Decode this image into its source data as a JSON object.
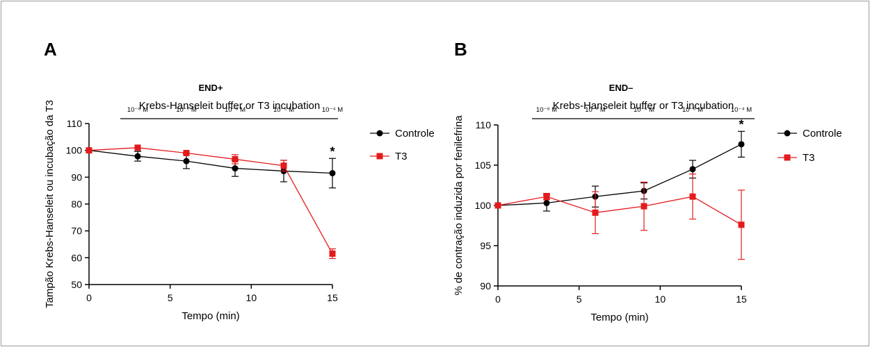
{
  "chart_data": [
    {
      "type": "line",
      "panel": "A",
      "condition": "END+",
      "buffer_label": "Krebs-Hanseleit buffer or T3 incubation",
      "concentrations": [
        "10⁻⁸ M",
        "10⁻⁷ M",
        "10⁻⁶ M",
        "10⁻⁵ M",
        "10⁻⁴ M"
      ],
      "xlabel": "Tempo (min)",
      "ylabel": "Tampão Krebs-Hanseleit ou incubação da T3",
      "xlim": [
        0,
        15
      ],
      "ylim": [
        50,
        110
      ],
      "xticks": [
        0,
        5,
        10,
        15
      ],
      "yticks": [
        50,
        60,
        70,
        80,
        90,
        100,
        110
      ],
      "x": [
        0,
        3,
        6,
        9,
        12,
        15
      ],
      "series": [
        {
          "name": "Controle",
          "color": "#000000",
          "marker": "circle",
          "values": [
            100,
            97.8,
            96,
            93.3,
            92.3,
            91.5
          ],
          "errors": [
            0,
            1.8,
            2.8,
            3,
            4,
            5.5
          ]
        },
        {
          "name": "T3",
          "color": "#e41a1c",
          "marker": "square",
          "values": [
            100,
            101,
            99,
            96.7,
            94.3,
            61.5
          ],
          "errors": [
            0,
            0,
            0,
            1.7,
            2,
            1.8
          ]
        }
      ],
      "annotations": [
        {
          "text": "*",
          "x": 15
        }
      ],
      "legend": "right"
    },
    {
      "type": "line",
      "panel": "B",
      "condition": "END–",
      "buffer_label": "Krebs-Hanseleit buffer or T3 incubation",
      "concentrations": [
        "10⁻⁸ M",
        "10⁻⁷ M",
        "10⁻⁶ M",
        "10⁻⁵ M",
        "10⁻⁴ M"
      ],
      "xlabel": "Tempo (min)",
      "ylabel": "% de contração induzida por fenilefrina",
      "xlim": [
        0,
        15
      ],
      "ylim": [
        90,
        110
      ],
      "xticks": [
        0,
        5,
        10,
        15
      ],
      "yticks": [
        90,
        95,
        100,
        105,
        110
      ],
      "x": [
        0,
        3,
        6,
        9,
        12,
        15
      ],
      "series": [
        {
          "name": "Controle",
          "color": "#000000",
          "marker": "circle",
          "values": [
            100,
            100.3,
            101.1,
            101.8,
            104.5,
            107.6
          ],
          "errors": [
            0,
            1,
            1.3,
            1,
            1.1,
            1.6
          ]
        },
        {
          "name": "T3",
          "color": "#e41a1c",
          "marker": "square",
          "values": [
            100,
            101.1,
            99.1,
            99.9,
            101.1,
            97.6
          ],
          "errors": [
            0,
            0.4,
            2.6,
            3,
            2.8,
            4.3
          ]
        }
      ],
      "annotations": [
        {
          "text": "*",
          "x": 15
        }
      ],
      "legend": "right"
    }
  ]
}
